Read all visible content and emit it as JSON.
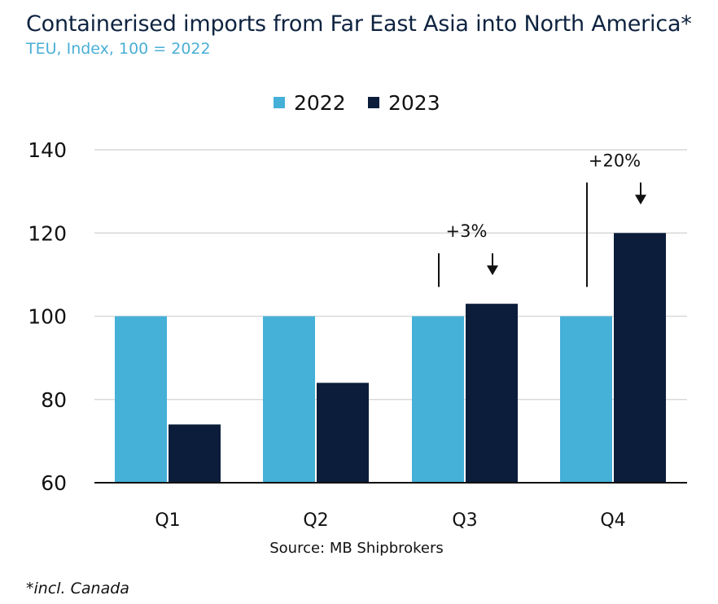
{
  "title": "Containerised imports from Far East Asia into North America*",
  "subtitle": "TEU, Index, 100 = 2022",
  "source": "Source: MB Shipbrokers",
  "footnote": "*incl. Canada",
  "colors": {
    "s2022": "#45b0d8",
    "s2023": "#0b1d3b",
    "grid": "#d9d9d9",
    "axis": "#111111"
  },
  "chart_data": {
    "type": "bar",
    "title": "Containerised imports from Far East Asia into North America*",
    "subtitle": "TEU, Index, 100 = 2022",
    "categories": [
      "Q1",
      "Q2",
      "Q3",
      "Q4"
    ],
    "series": [
      {
        "name": "2022",
        "values": [
          100,
          100,
          100,
          100
        ]
      },
      {
        "name": "2023",
        "values": [
          74,
          84,
          103,
          120
        ]
      }
    ],
    "ylim": [
      60,
      140
    ],
    "yticks": [
      60,
      80,
      100,
      120,
      140
    ],
    "xlabel": "",
    "ylabel": "",
    "grid": true,
    "legend": "top-center",
    "annotations": [
      {
        "category": "Q3",
        "text": "+3%"
      },
      {
        "category": "Q4",
        "text": "+20%"
      }
    ]
  }
}
